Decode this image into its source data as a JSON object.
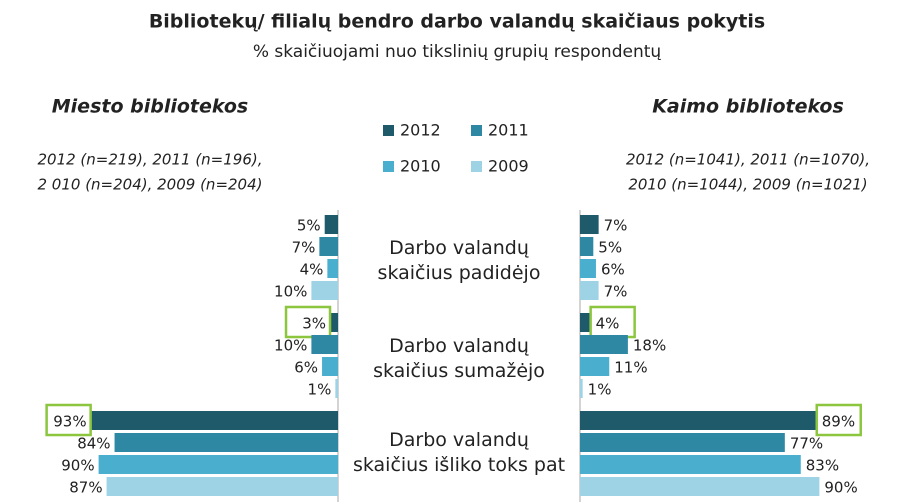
{
  "header": {
    "title": "Bibliotekų/ filialų bendro darbo valandų skaičiaus pokytis",
    "subtitle": "% skaičiuojami nuo tikslinių grupių respondentų"
  },
  "chart_data": {
    "type": "butterfly-bar",
    "categories": [
      "Darbo valandų skaičius padidėjo",
      "Darbo valandų skaičius sumažėjo",
      "Darbo valandų skaičius išliko toks pat"
    ],
    "series": [
      {
        "name": "2012",
        "color": "#1e5a6a"
      },
      {
        "name": "2011",
        "color": "#2e87a3"
      },
      {
        "name": "2010",
        "color": "#4aafcf"
      },
      {
        "name": "2009",
        "color": "#9ed3e6"
      }
    ],
    "xlim": [
      0,
      100
    ],
    "highlight_color": "#8cc63f",
    "panels": [
      {
        "title": "Miesto bibliotekos",
        "note": [
          "2012 (n=219), 2011 (n=196),",
          "2 010 (n=204), 2009 (n=204)"
        ],
        "values": [
          [
            5,
            3,
            93
          ],
          [
            7,
            10,
            84
          ],
          [
            4,
            6,
            90
          ],
          [
            10,
            1,
            87
          ]
        ],
        "value_labels": [
          [
            "5%",
            "3%",
            "93%"
          ],
          [
            "7%",
            "10%",
            "84%"
          ],
          [
            "4%",
            "6%",
            "90%"
          ],
          [
            "10%",
            "1%",
            "87%"
          ]
        ],
        "highlighted": [
          [
            0,
            1
          ],
          [
            0,
            2
          ]
        ]
      },
      {
        "title": "Kaimo bibliotekos",
        "note": [
          "2012 (n=1041), 2011 (n=1070),",
          "2010 (n=1044), 2009 (n=1021)"
        ],
        "values": [
          [
            7,
            4,
            89
          ],
          [
            5,
            18,
            77
          ],
          [
            6,
            11,
            83
          ],
          [
            7,
            1,
            90
          ]
        ],
        "value_labels": [
          [
            "7%",
            "4%",
            "89%"
          ],
          [
            "5%",
            "18%",
            "77%"
          ],
          [
            "6%",
            "11%",
            "83%"
          ],
          [
            "7%",
            "1%",
            "90%"
          ]
        ],
        "highlighted": [
          [
            0,
            1
          ],
          [
            0,
            2
          ]
        ]
      }
    ]
  }
}
